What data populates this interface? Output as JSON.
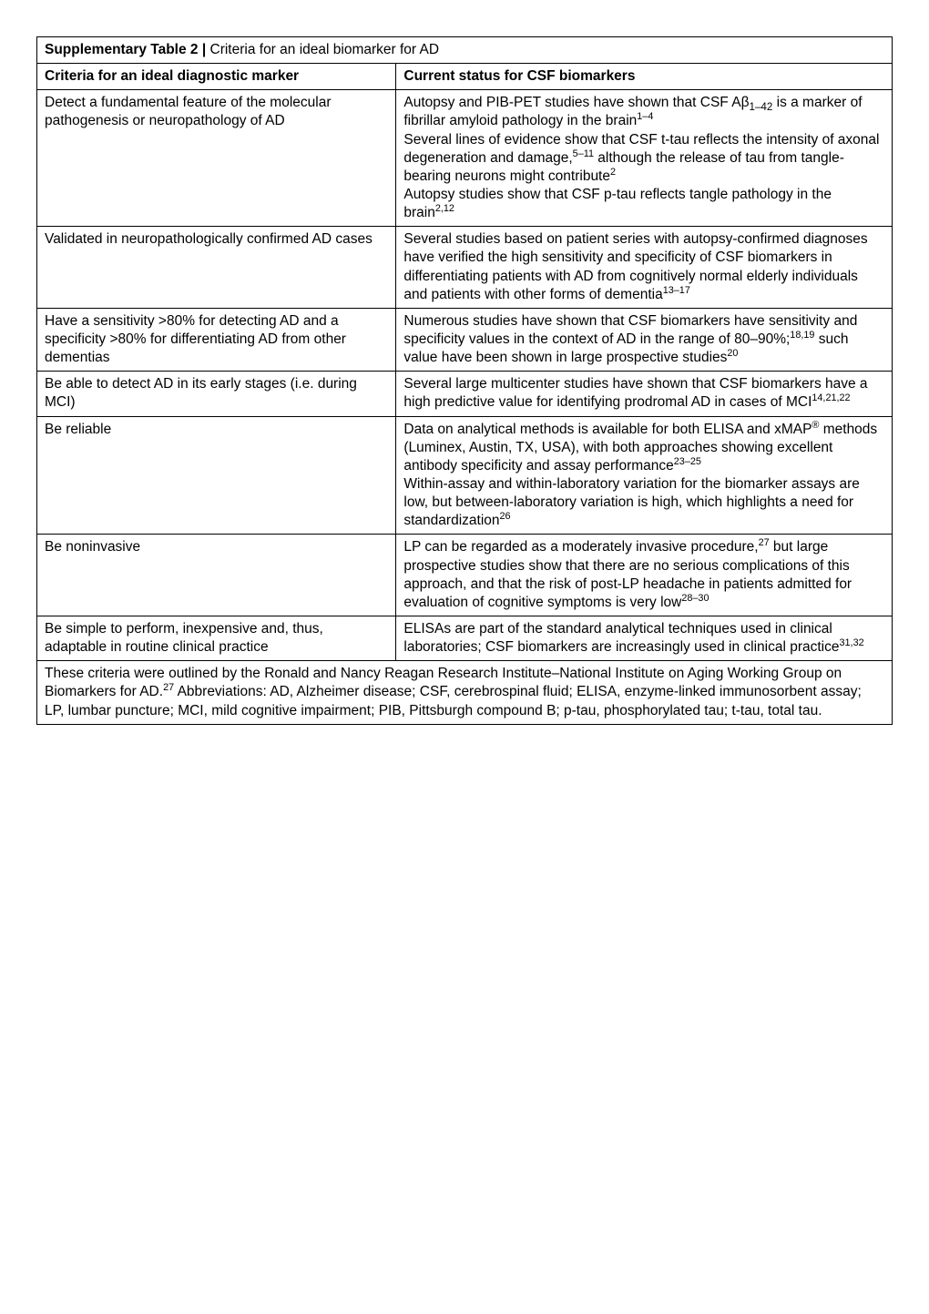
{
  "table": {
    "title_bold": "Supplementary Table 2 | ",
    "title_rest": "Criteria for an ideal biomarker for AD",
    "header_left": "Criteria for an ideal diagnostic marker",
    "header_right": "Current status for CSF biomarkers",
    "rows": [
      {
        "left": "Detect a fundamental feature of the molecular pathogenesis or neuropathology of AD",
        "right_html": "Autopsy and PIB-PET studies have shown that CSF Aβ<sub>1–42</sub> is a marker of fibrillar amyloid pathology in the brain<sup>1–4</sup><br>Several lines of evidence show that CSF t-tau reflects the intensity of axonal degeneration and damage,<sup>5–11</sup> although the release of tau from tangle-bearing neurons might contribute<sup>2</sup><br>Autopsy studies show that CSF p-tau reflects tangle pathology in the brain<sup>2,12</sup>"
      },
      {
        "left": "Validated in neuropathologically confirmed AD cases",
        "right_html": "Several studies based on patient series with autopsy-confirmed diagnoses have verified the high sensitivity and specificity of CSF biomarkers in differentiating patients with AD from cognitively normal elderly individuals and patients with other forms of dementia<sup>13–17</sup>"
      },
      {
        "left": "Have a sensitivity >80% for detecting AD and a specificity >80% for differentiating AD from other dementias",
        "right_html": "Numerous studies have shown that CSF biomarkers have sensitivity and specificity values in the context of AD in the range of 80–90%;<sup>18,19</sup> such value have been shown in large prospective studies<sup>20</sup>"
      },
      {
        "left": "Be able to detect AD in its early stages (i.e. during MCI)",
        "right_html": "Several large multicenter studies have shown that CSF biomarkers have a high predictive value for identifying prodromal AD in cases of MCI<sup>14,21,22</sup>"
      },
      {
        "left": "Be reliable",
        "right_html": "Data on analytical methods is available for both ELISA and xMAP<sup>®</sup> methods (Luminex, Austin, TX, USA), with both approaches showing excellent antibody specificity and assay performance<sup>23–25</sup><br>Within-assay and within-laboratory variation for the biomarker assays are low, but between-laboratory variation is high, which highlights a need for standardization<sup>26</sup>"
      },
      {
        "left": "Be noninvasive",
        "right_html": "LP can be regarded as a moderately invasive procedure,<sup>27</sup> but large prospective studies show that there are no serious complications of this approach, and that the risk of post-LP headache in patients admitted for evaluation of cognitive symptoms is very low<sup>28–30</sup>"
      },
      {
        "left": "Be simple to perform, inexpensive and, thus, adaptable in routine clinical practice",
        "right_html": "ELISAs are part of the standard analytical techniques used in clinical laboratories; CSF biomarkers are increasingly used in clinical practice<sup>31,32</sup>"
      }
    ],
    "footer_html": "These criteria were outlined by the Ronald and Nancy Reagan Research Institute–National Institute on Aging Working Group on Biomarkers for AD.<sup>27</sup> Abbreviations: AD, Alzheimer disease; CSF, cerebrospinal fluid; ELISA, enzyme-linked immunosorbent assay; LP, lumbar puncture; MCI, mild cognitive impairment; PIB, Pittsburgh compound B; p-tau, phosphorylated tau; t-tau, total tau."
  },
  "style": {
    "font_family": "Arial, Helvetica, sans-serif",
    "font_size_pt": 12,
    "border_color": "#000000",
    "background_color": "#ffffff",
    "text_color": "#000000",
    "left_col_width_pct": 42,
    "right_col_width_pct": 58
  }
}
